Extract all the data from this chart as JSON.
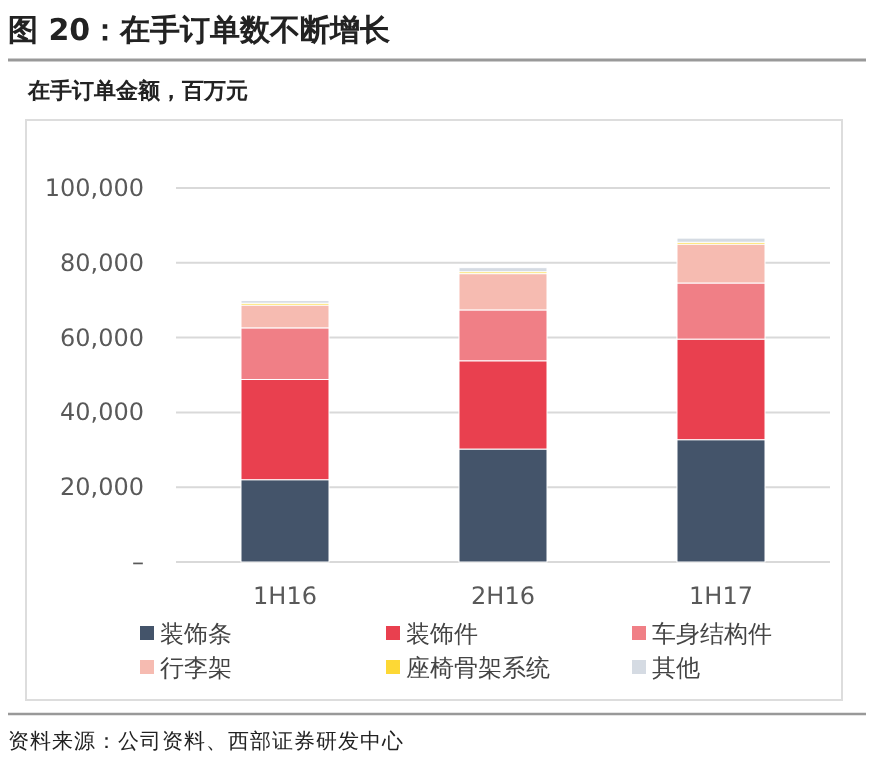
{
  "chart_data": {
    "type": "bar",
    "stacked": true,
    "title": "图 20：在手订单数不断增长",
    "subtitle": "在手订单金额，百万元",
    "categories": [
      "1H16",
      "2H16",
      "1H17"
    ],
    "series": [
      {
        "name": "装饰条",
        "color": "#44546a",
        "values": [
          22000,
          30200,
          32700
        ]
      },
      {
        "name": "装饰件",
        "color": "#e9404f",
        "values": [
          26800,
          23600,
          26900
        ]
      },
      {
        "name": "车身结构件",
        "color": "#f07f86",
        "values": [
          13800,
          13600,
          15000
        ]
      },
      {
        "name": "行李架",
        "color": "#f6bbb1",
        "values": [
          6100,
          9700,
          10400
        ]
      },
      {
        "name": "座椅骨架系统",
        "color": "#fdd835",
        "values": [
          500,
          500,
          500
        ]
      },
      {
        "name": "其他",
        "color": "#d5dbe3",
        "values": [
          700,
          1100,
          1100
        ]
      }
    ],
    "ylim": [
      0,
      100000
    ],
    "yticks": [
      {
        "value": 0,
        "label": "–"
      },
      {
        "value": 20000,
        "label": "20,000"
      },
      {
        "value": 40000,
        "label": "40,000"
      },
      {
        "value": 60000,
        "label": "60,000"
      },
      {
        "value": 80000,
        "label": "80,000"
      },
      {
        "value": 100000,
        "label": "100,000"
      }
    ],
    "grid": "y",
    "legend": "bottom",
    "annotations": [
      "资料来源：公司资料、西部证券研发中心"
    ]
  }
}
